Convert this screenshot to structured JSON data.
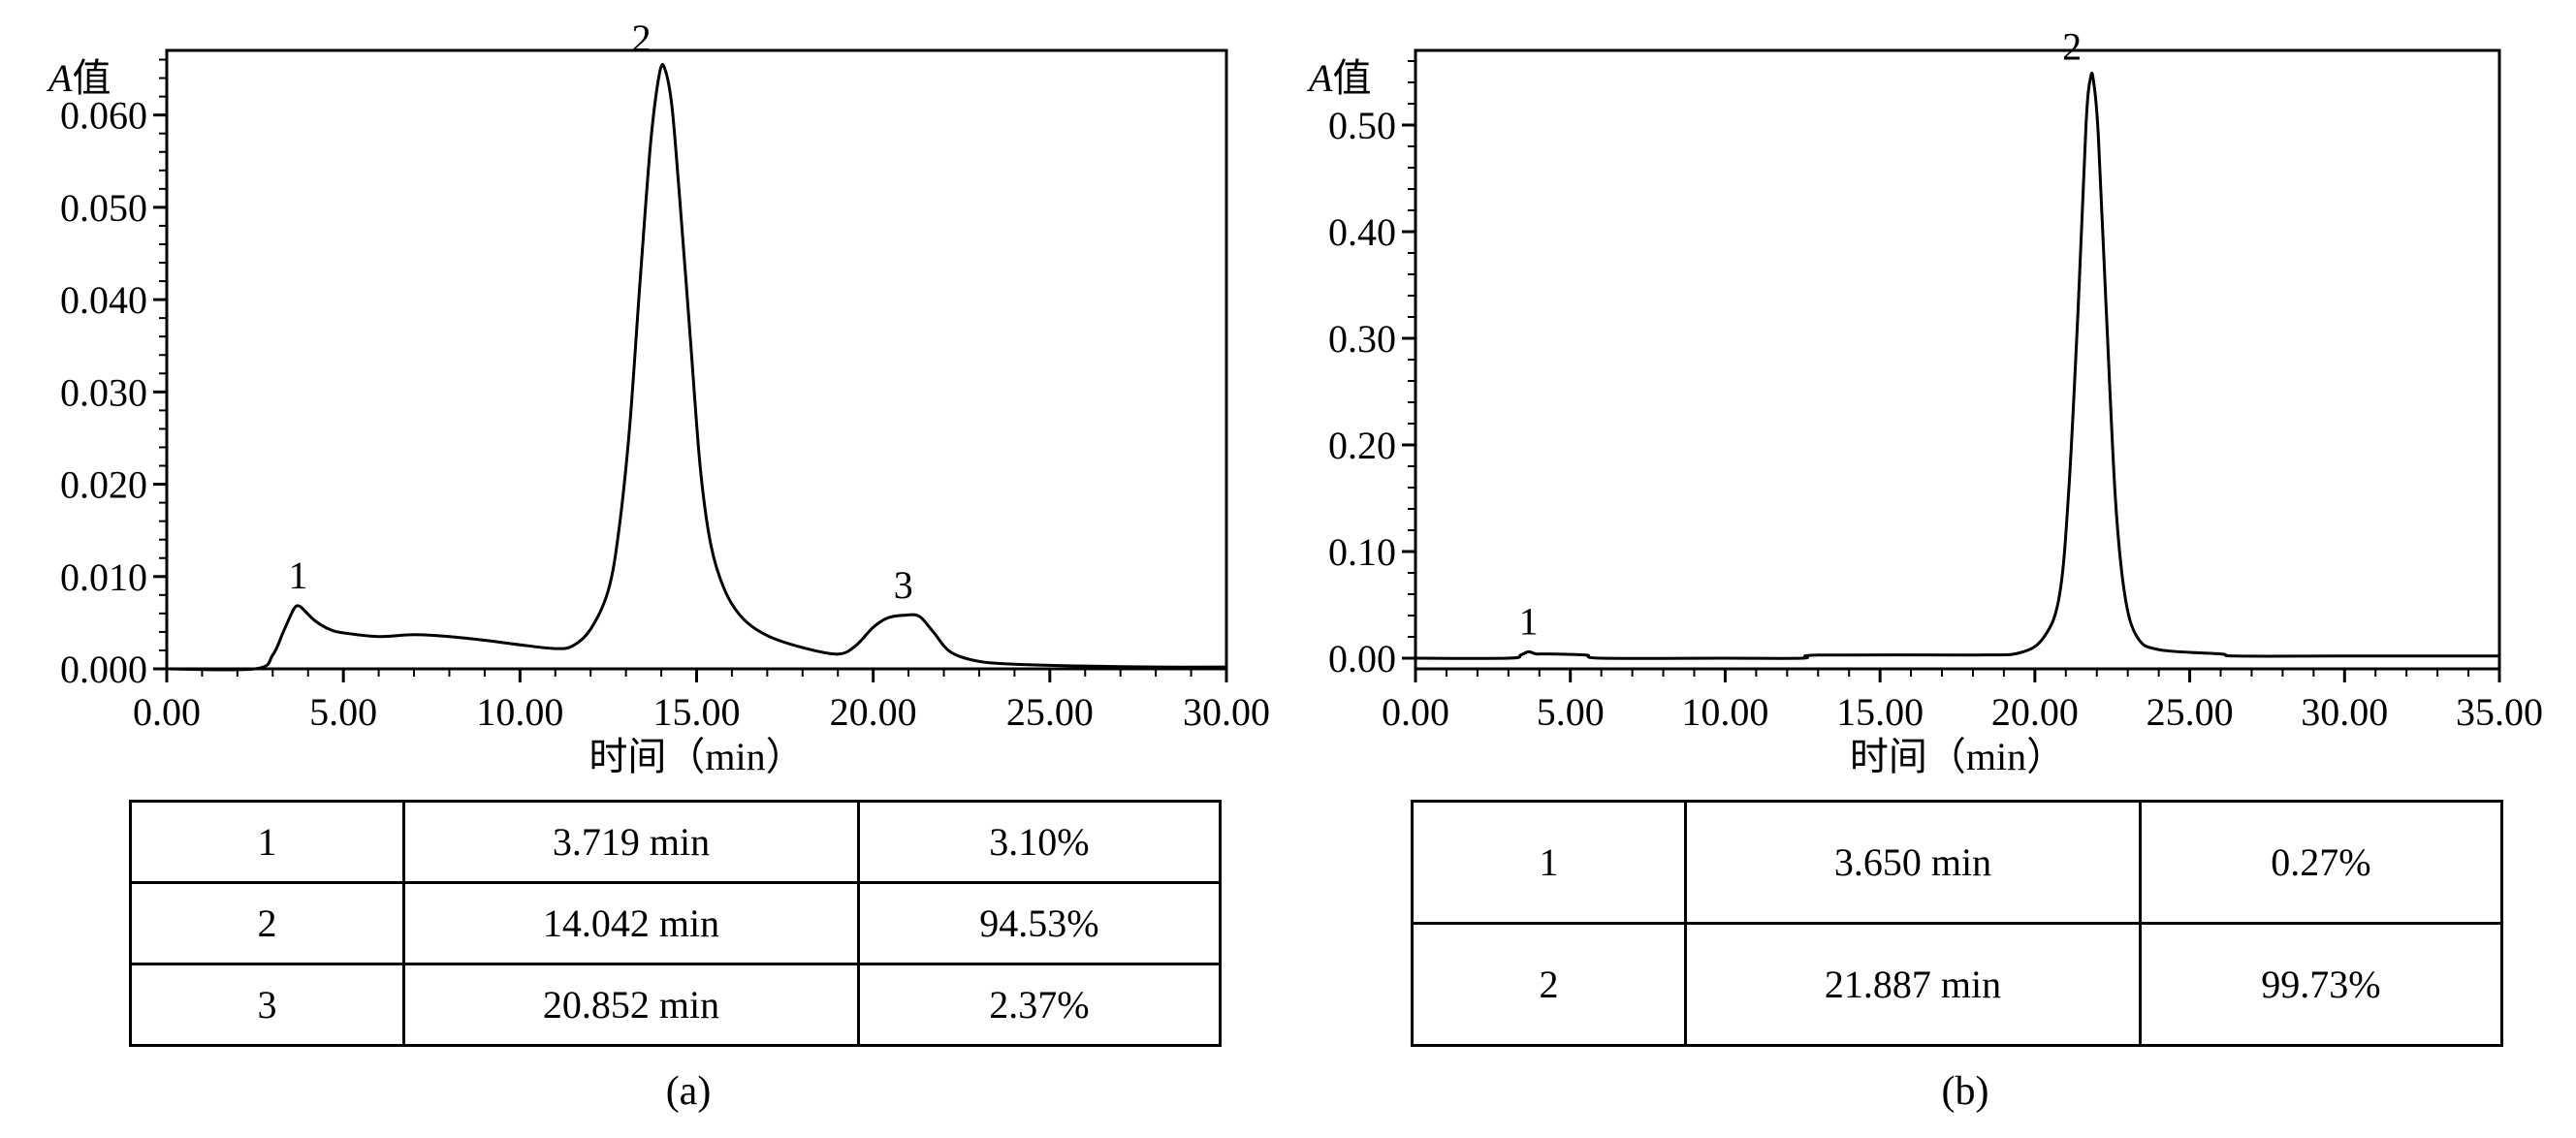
{
  "chart_data": [
    {
      "type": "line",
      "panel": "(a)",
      "ylabel_italic": "A",
      "ylabel_rest": "值",
      "xlabel": "时间（min）",
      "xlim": [
        0,
        30
      ],
      "ylim": [
        0,
        0.067
      ],
      "x_ticks": [
        0,
        5,
        10,
        15,
        20,
        25,
        30
      ],
      "x_tick_labels": [
        "0.00",
        "5.00",
        "10.00",
        "15.00",
        "20.00",
        "25.00",
        "30.00"
      ],
      "y_ticks": [
        0,
        0.01,
        0.02,
        0.03,
        0.04,
        0.05,
        0.06
      ],
      "y_tick_labels": [
        "0.000",
        "0.010",
        "0.020",
        "0.030",
        "0.040",
        "0.050",
        "0.060"
      ],
      "series": [
        {
          "x": [
            0,
            2.5,
            3.0,
            3.3,
            3.6,
            3.75,
            3.9,
            4.2,
            4.6,
            5.0,
            6.0,
            7.0,
            8.0,
            9.0,
            10.0,
            11.0,
            11.5,
            12.0,
            12.5,
            12.8,
            13.1,
            13.4,
            13.7,
            13.95,
            14.1,
            14.3,
            14.5,
            14.8,
            15.1,
            15.4,
            15.8,
            16.3,
            17.0,
            18.0,
            19.0,
            19.5,
            20.0,
            20.4,
            20.85,
            21.3,
            21.7,
            22.2,
            23.0,
            24.0,
            26.0,
            28.0,
            30.0
          ],
          "y": [
            0.0,
            0.0,
            0.0015,
            0.004,
            0.0065,
            0.0068,
            0.0063,
            0.0052,
            0.0043,
            0.0039,
            0.0035,
            0.0037,
            0.0035,
            0.0031,
            0.0026,
            0.0022,
            0.0025,
            0.0043,
            0.0085,
            0.015,
            0.026,
            0.042,
            0.057,
            0.0645,
            0.065,
            0.061,
            0.052,
            0.037,
            0.022,
            0.0135,
            0.0085,
            0.0055,
            0.0036,
            0.0023,
            0.0016,
            0.0025,
            0.0045,
            0.0055,
            0.0058,
            0.0057,
            0.004,
            0.0018,
            0.0008,
            0.0005,
            0.0003,
            0.0002,
            0.0002
          ]
        }
      ],
      "peak_labels": [
        {
          "label": "1",
          "x": 3.719,
          "y": 0.0068
        },
        {
          "label": "2",
          "x": 14.042,
          "y": 0.065
        },
        {
          "label": "3",
          "x": 20.852,
          "y": 0.0058
        }
      ]
    },
    {
      "type": "line",
      "panel": "(b)",
      "ylabel_italic": "A",
      "ylabel_rest": "值",
      "xlabel": "时间（min）",
      "xlim": [
        0,
        35
      ],
      "ylim": [
        -0.01,
        0.57
      ],
      "x_ticks": [
        0,
        5,
        10,
        15,
        20,
        25,
        30,
        35
      ],
      "x_tick_labels": [
        "0.00",
        "5.00",
        "10.00",
        "15.00",
        "20.00",
        "25.00",
        "30.00",
        "35.00"
      ],
      "y_ticks": [
        0,
        0.1,
        0.2,
        0.3,
        0.4,
        0.5
      ],
      "y_tick_labels": [
        "0.00",
        "0.10",
        "0.20",
        "0.30",
        "0.40",
        "0.50"
      ],
      "series": [
        {
          "x": [
            0,
            3.0,
            3.4,
            3.65,
            3.9,
            4.3,
            5.5,
            6.0,
            10.0,
            12.5,
            13.0,
            18.0,
            19.5,
            20.3,
            20.8,
            21.1,
            21.4,
            21.65,
            21.8,
            21.9,
            22.05,
            22.3,
            22.6,
            22.9,
            23.3,
            24.0,
            26.0,
            26.5,
            30.0,
            35.0
          ],
          "y": [
            0.0,
            0.0,
            0.003,
            0.006,
            0.004,
            0.004,
            0.003,
            0.0,
            0.0,
            0.0,
            0.003,
            0.003,
            0.005,
            0.02,
            0.06,
            0.16,
            0.33,
            0.5,
            0.545,
            0.54,
            0.49,
            0.33,
            0.15,
            0.06,
            0.02,
            0.008,
            0.004,
            0.002,
            0.002,
            0.002
          ]
        }
      ],
      "peak_labels": [
        {
          "label": "1",
          "x": 3.65,
          "y": 0.006
        },
        {
          "label": "2",
          "x": 21.887,
          "y": 0.545
        }
      ]
    }
  ],
  "tables": [
    {
      "rows": [
        [
          "1",
          "3.719 min",
          "3.10%"
        ],
        [
          "2",
          "14.042 min",
          "94.53%"
        ],
        [
          "3",
          "20.852 min",
          "2.37%"
        ]
      ]
    },
    {
      "rows": [
        [
          "1",
          "3.650 min",
          "0.27%"
        ],
        [
          "2",
          "21.887 min",
          "99.73%"
        ]
      ]
    }
  ],
  "captions": [
    "(a)",
    "(b)"
  ]
}
